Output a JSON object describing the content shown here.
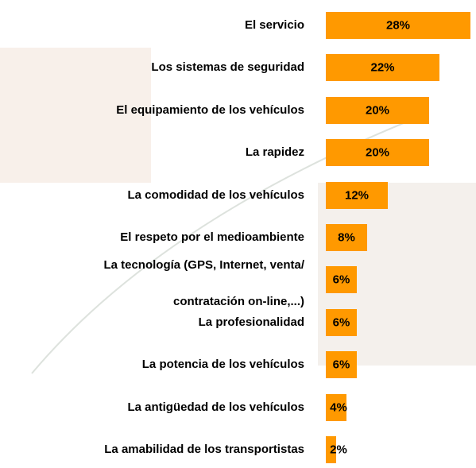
{
  "chart_data": {
    "type": "bar",
    "orientation": "horizontal",
    "color": "#ff9900",
    "categories": [
      "El servicio",
      "Los sistemas de seguridad",
      "El equipamiento de los vehículos",
      "La rapidez",
      "La comodidad de los vehículos",
      "El respeto por el medioambiente",
      "La tecnología (GPS, Internet, venta/\ncontratación on-line,...)",
      "La profesionalidad",
      "La potencia de los vehículos",
      "La antigüedad de los vehículos",
      "La amabilidad de los transportistas"
    ],
    "values": [
      28,
      22,
      20,
      20,
      12,
      8,
      6,
      6,
      6,
      4,
      2
    ],
    "value_labels": [
      "28%",
      "22%",
      "20%",
      "20%",
      "12%",
      "8%",
      "6%",
      "6%",
      "6%",
      "4%",
      "2%"
    ]
  }
}
